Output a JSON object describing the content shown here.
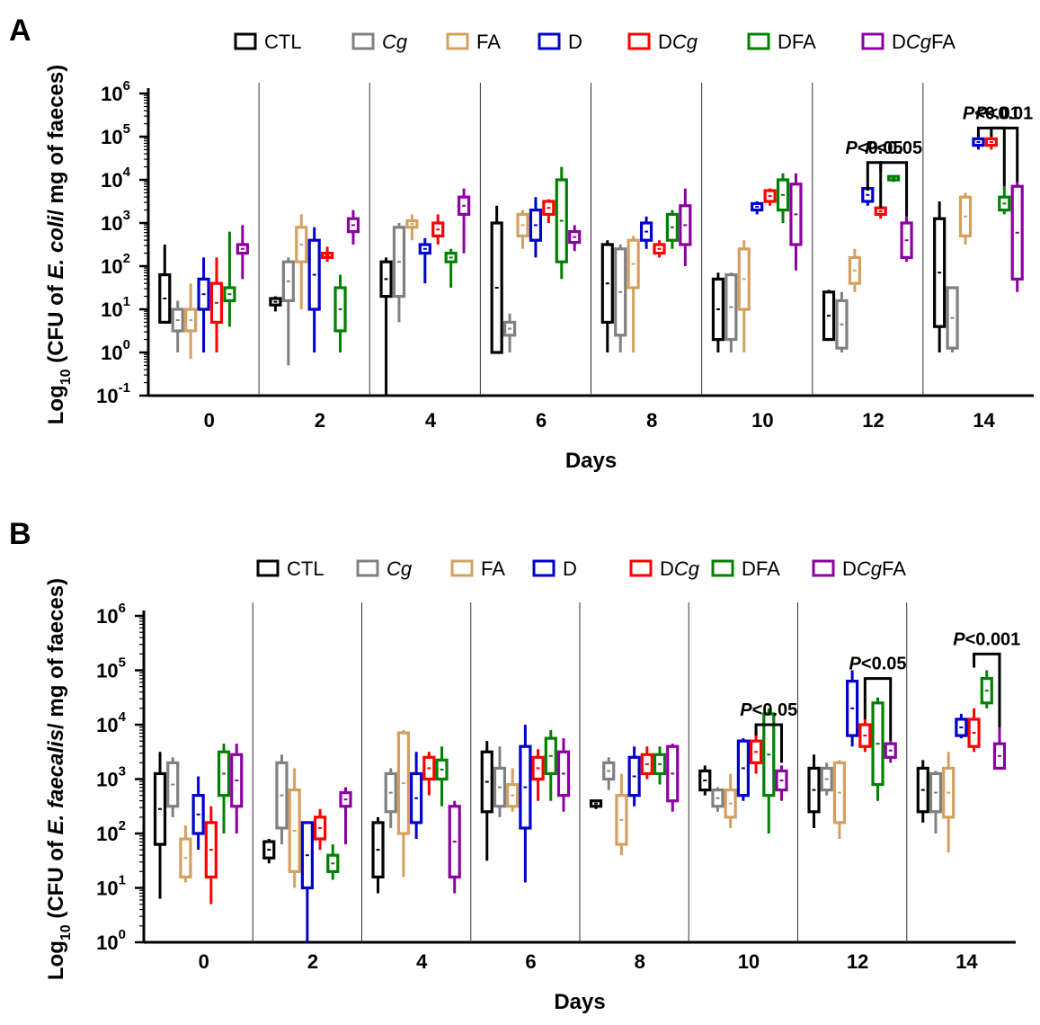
{
  "chart_data": [
    {
      "panel": "A",
      "type": "box",
      "ylabel": {
        "pre": "Log",
        "sub": "10",
        "mid": " (CFU of ",
        "italic": "E. coli",
        "post": "/ mg of faeces)"
      },
      "xlabel": "Days",
      "yscale": "log",
      "ylim_exp": [
        -1,
        6
      ],
      "ytick_exps": [
        -1,
        0,
        1,
        2,
        3,
        4,
        5,
        6
      ],
      "days": [
        "0",
        "2",
        "4",
        "6",
        "8",
        "10",
        "12",
        "14"
      ],
      "legend": [
        {
          "parts": [
            {
              "t": "CTL",
              "i": false
            }
          ],
          "color": "#000000"
        },
        {
          "parts": [
            {
              "t": "Cg",
              "i": true
            }
          ],
          "color": "#808080"
        },
        {
          "parts": [
            {
              "t": "FA",
              "i": false
            }
          ],
          "color": "#D4A060"
        },
        {
          "parts": [
            {
              "t": "D",
              "i": false
            }
          ],
          "color": "#0000CC"
        },
        {
          "parts": [
            {
              "t": "D",
              "i": false
            },
            {
              "t": "Cg",
              "i": true
            }
          ],
          "color": "#FF0000"
        },
        {
          "parts": [
            {
              "t": "DFA",
              "i": false
            }
          ],
          "color": "#008000"
        },
        {
          "parts": [
            {
              "t": "D",
              "i": false
            },
            {
              "t": "Cg",
              "i": true
            },
            {
              "t": "FA",
              "i": false
            }
          ],
          "color": "#8B00A0"
        }
      ],
      "boxes": [
        [
          [
            0,
            2.5,
            1,
            0.7,
            1.8
          ],
          [
            0,
            1.2,
            0,
            0.5,
            1.0
          ],
          [
            0,
            1.6,
            -0.15,
            0.5,
            1.0
          ],
          [
            0,
            2.2,
            0,
            1.0,
            1.7
          ],
          [
            0,
            2.2,
            0,
            0.7,
            1.6
          ],
          [
            0,
            2.8,
            0.6,
            1.2,
            1.5
          ],
          [
            0,
            2.95,
            1.7,
            2.3,
            2.5
          ]
        ],
        [
          [
            1,
            1.3,
            0.95,
            1.1,
            1.25
          ],
          [
            1,
            2.2,
            -0.3,
            1.2,
            2.1
          ],
          [
            1,
            3.2,
            1.0,
            2.1,
            2.9
          ],
          [
            1,
            2.9,
            0,
            1.0,
            2.6
          ],
          [
            1,
            2.45,
            2.1,
            2.2,
            2.3
          ],
          [
            1,
            1.8,
            0,
            0.5,
            1.5
          ],
          [
            1,
            3.3,
            2.5,
            2.8,
            3.1
          ]
        ],
        [
          [
            2,
            2.2,
            -1.0,
            1.3,
            2.1
          ],
          [
            2,
            3.0,
            0.7,
            1.3,
            2.9
          ],
          [
            2,
            3.2,
            2.6,
            2.9,
            3.05
          ],
          [
            2,
            2.65,
            1.6,
            2.3,
            2.5
          ],
          [
            2,
            3.2,
            2.5,
            2.7,
            3.0
          ],
          [
            2,
            2.4,
            1.5,
            2.1,
            2.3
          ],
          [
            2,
            3.8,
            2.3,
            3.2,
            3.6
          ]
        ],
        [
          [
            3,
            3.4,
            0,
            0,
            3.0
          ],
          [
            3,
            0.9,
            0,
            0.4,
            0.7
          ],
          [
            3,
            3.3,
            2.4,
            2.7,
            3.2
          ],
          [
            3,
            3.6,
            2.2,
            2.6,
            3.3
          ],
          [
            3,
            3.55,
            3.0,
            3.2,
            3.5
          ],
          [
            3,
            4.3,
            1.7,
            2.1,
            4.0
          ],
          [
            3,
            2.95,
            2.35,
            2.55,
            2.8
          ]
        ],
        [
          [
            4,
            2.6,
            0,
            0.7,
            2.5
          ],
          [
            4,
            2.5,
            0,
            0.4,
            2.4
          ],
          [
            4,
            2.7,
            0,
            1.5,
            2.6
          ],
          [
            4,
            3.15,
            2.4,
            2.6,
            3.0
          ],
          [
            4,
            2.6,
            2.2,
            2.3,
            2.5
          ],
          [
            4,
            3.3,
            2.4,
            2.6,
            3.2
          ],
          [
            4,
            3.8,
            2.0,
            2.5,
            3.4
          ]
        ],
        [
          [
            5,
            1.85,
            0,
            0.3,
            1.7
          ],
          [
            5,
            1.85,
            0,
            0.3,
            1.8
          ],
          [
            5,
            2.6,
            0,
            1.0,
            2.4
          ],
          [
            5,
            3.5,
            3.2,
            3.3,
            3.45
          ],
          [
            5,
            3.8,
            3.4,
            3.5,
            3.75
          ],
          [
            5,
            4.15,
            3.0,
            3.3,
            4.0
          ],
          [
            5,
            4.15,
            1.9,
            2.5,
            3.9
          ]
        ],
        [
          [
            6,
            1.45,
            0.9,
            0.3,
            1.4
          ],
          [
            6,
            1.4,
            0,
            0.1,
            1.2
          ],
          [
            6,
            2.4,
            1.4,
            1.6,
            2.2
          ],
          [
            6,
            3.9,
            3.4,
            3.5,
            3.8
          ],
          [
            6,
            3.4,
            3.1,
            3.2,
            3.35
          ],
          [
            6,
            4.1,
            3.95,
            4.0,
            4.08
          ],
          [
            6,
            3.15,
            2.1,
            2.2,
            3.0
          ]
        ],
        [
          [
            7,
            3.5,
            0,
            0.6,
            3.1
          ],
          [
            7,
            1.5,
            0,
            0.1,
            1.5
          ],
          [
            7,
            3.7,
            2.5,
            2.7,
            3.6
          ],
          [
            7,
            5.05,
            4.7,
            4.8,
            4.95
          ],
          [
            7,
            5.05,
            4.7,
            4.8,
            4.95
          ],
          [
            7,
            3.85,
            3.2,
            3.3,
            3.6
          ],
          [
            7,
            3.95,
            1.4,
            1.7,
            3.85
          ]
        ]
      ],
      "significance": [
        {
          "text": "<0.05",
          "day": 6,
          "from": 3,
          "to": 4,
          "k": 3,
          "y": 4.4,
          "drop_l": 3.75,
          "drop_r": 3.35
        },
        {
          "text": "<0.05",
          "day": 6,
          "from": 4,
          "to": 6,
          "k": 3,
          "y": 4.4,
          "drop_l": 4.2,
          "drop_r": 3.15
        },
        {
          "text": "<0.01",
          "day": 7,
          "from": 3,
          "to": 5,
          "k": 3,
          "y": 5.2,
          "drop_l": 5.0,
          "drop_r": 3.85
        },
        {
          "text": "<0.01",
          "day": 7,
          "from": 4,
          "to": 6,
          "k": 3,
          "y": 5.2,
          "drop_l": 5.0,
          "drop_r": 3.95
        }
      ]
    },
    {
      "panel": "B",
      "type": "box",
      "ylabel": {
        "pre": "Log",
        "sub": "10",
        "mid": " (CFU of ",
        "italic": "E. faecalis",
        "post": "/ mg of faeces)"
      },
      "xlabel": "Days",
      "yscale": "log",
      "ylim_exp": [
        0,
        6
      ],
      "ytick_exps": [
        0,
        1,
        2,
        3,
        4,
        5,
        6
      ],
      "days": [
        "0",
        "2",
        "4",
        "6",
        "8",
        "10",
        "12",
        "14"
      ],
      "legend": [
        {
          "parts": [
            {
              "t": "CTL",
              "i": false
            }
          ],
          "color": "#000000"
        },
        {
          "parts": [
            {
              "t": "Cg",
              "i": true
            }
          ],
          "color": "#808080"
        },
        {
          "parts": [
            {
              "t": "FA",
              "i": false
            }
          ],
          "color": "#D4A060"
        },
        {
          "parts": [
            {
              "t": "D",
              "i": false
            }
          ],
          "color": "#0000CC"
        },
        {
          "parts": [
            {
              "t": "D",
              "i": false
            },
            {
              "t": "Cg",
              "i": true
            }
          ],
          "color": "#FF0000"
        },
        {
          "parts": [
            {
              "t": "DFA",
              "i": false
            }
          ],
          "color": "#008000"
        },
        {
          "parts": [
            {
              "t": "D",
              "i": false
            },
            {
              "t": "Cg",
              "i": true
            },
            {
              "t": "FA",
              "i": false
            }
          ],
          "color": "#8B00A0"
        }
      ],
      "boxes": [
        [
          [
            0,
            3.5,
            0.8,
            1.8,
            3.1
          ],
          [
            0,
            3.4,
            2.3,
            2.5,
            3.3
          ],
          [
            0,
            2.15,
            1.1,
            1.2,
            1.9
          ],
          [
            0,
            3.05,
            1.7,
            2.0,
            2.7
          ],
          [
            0,
            2.5,
            0.7,
            1.2,
            2.2
          ],
          [
            0,
            3.65,
            2.0,
            2.7,
            3.5
          ],
          [
            0,
            3.65,
            2.0,
            2.5,
            3.45
          ]
        ],
        [
          [
            1,
            1.9,
            1.45,
            1.55,
            1.85
          ],
          [
            1,
            3.45,
            1.8,
            2.1,
            3.3
          ],
          [
            1,
            3.2,
            1.0,
            1.3,
            2.8
          ],
          [
            1,
            2.2,
            0,
            1.0,
            2.2
          ],
          [
            1,
            2.45,
            1.7,
            1.9,
            2.3
          ],
          [
            1,
            1.8,
            1.15,
            1.3,
            1.6
          ],
          [
            1,
            2.85,
            1.8,
            2.5,
            2.75
          ]
        ],
        [
          [
            2,
            2.3,
            0.9,
            1.2,
            2.2
          ],
          [
            2,
            3.2,
            2.1,
            2.4,
            3.1
          ],
          [
            2,
            3.9,
            1.2,
            2.0,
            3.85
          ],
          [
            2,
            3.5,
            1.9,
            2.2,
            3.1
          ],
          [
            2,
            3.5,
            2.7,
            3.0,
            3.4
          ],
          [
            2,
            3.6,
            2.5,
            3.0,
            3.35
          ],
          [
            2,
            2.6,
            0.9,
            1.2,
            2.5
          ]
        ],
        [
          [
            3,
            3.7,
            1.5,
            2.4,
            3.5
          ],
          [
            3,
            3.6,
            2.3,
            2.5,
            3.2
          ],
          [
            3,
            3.2,
            2.4,
            2.5,
            2.9
          ],
          [
            3,
            4.0,
            1.1,
            2.1,
            3.6
          ],
          [
            3,
            3.55,
            2.6,
            3.0,
            3.4
          ],
          [
            3,
            3.9,
            2.6,
            3.1,
            3.75
          ],
          [
            3,
            3.75,
            2.4,
            2.7,
            3.5
          ]
        ],
        [
          [
            4,
            2.6,
            2.45,
            2.5,
            2.6
          ],
          [
            4,
            3.4,
            2.8,
            3.0,
            3.3
          ],
          [
            4,
            3.1,
            1.6,
            1.8,
            2.7
          ],
          [
            4,
            3.6,
            2.5,
            2.7,
            3.4
          ],
          [
            4,
            3.6,
            3.0,
            3.1,
            3.45
          ],
          [
            4,
            3.6,
            2.9,
            3.1,
            3.45
          ],
          [
            4,
            3.65,
            2.4,
            2.6,
            3.6
          ]
        ],
        [
          [
            5,
            3.25,
            2.7,
            2.8,
            3.15
          ],
          [
            5,
            2.85,
            2.4,
            2.5,
            2.8
          ],
          [
            5,
            3.1,
            2.1,
            2.3,
            2.8
          ],
          [
            5,
            3.75,
            2.6,
            2.7,
            3.7
          ],
          [
            5,
            3.9,
            3.1,
            3.3,
            3.7
          ],
          [
            5,
            4.3,
            2.0,
            2.7,
            4.2
          ],
          [
            5,
            3.25,
            2.6,
            2.8,
            3.15
          ]
        ],
        [
          [
            6,
            3.45,
            2.1,
            2.4,
            3.2
          ],
          [
            6,
            3.3,
            2.7,
            2.8,
            3.2
          ],
          [
            6,
            3.35,
            1.9,
            2.2,
            3.3
          ],
          [
            6,
            5.0,
            3.6,
            3.8,
            4.8
          ],
          [
            6,
            4.1,
            3.5,
            3.6,
            4.0
          ],
          [
            6,
            4.5,
            2.6,
            2.9,
            4.4
          ],
          [
            6,
            3.7,
            3.3,
            3.4,
            3.65
          ]
        ],
        [
          [
            7,
            3.35,
            2.2,
            2.4,
            3.2
          ],
          [
            7,
            3.15,
            2.0,
            2.4,
            3.1
          ],
          [
            7,
            3.5,
            1.65,
            2.3,
            3.2
          ],
          [
            7,
            4.2,
            3.75,
            3.8,
            4.1
          ],
          [
            7,
            4.3,
            3.5,
            3.6,
            4.1
          ],
          [
            7,
            5.0,
            4.3,
            4.4,
            4.85
          ],
          [
            7,
            3.95,
            3.2,
            3.2,
            3.65
          ]
        ]
      ],
      "significance": [
        {
          "text": "<0.05",
          "day": 5,
          "from": 4,
          "to": 6,
          "k": 3,
          "y": 4.0,
          "drop_l": 3.8,
          "drop_r": 3.3
        },
        {
          "text": "<0.05",
          "day": 6,
          "from": 4,
          "to": 6,
          "k": 3,
          "y": 4.85,
          "drop_l": 4.1,
          "drop_r": 3.7
        },
        {
          "text": "<0.001",
          "day": 7,
          "from": 4,
          "to": 6,
          "k": 3,
          "y": 5.3,
          "drop_l": 5.05,
          "drop_r": 3.95
        }
      ]
    }
  ]
}
